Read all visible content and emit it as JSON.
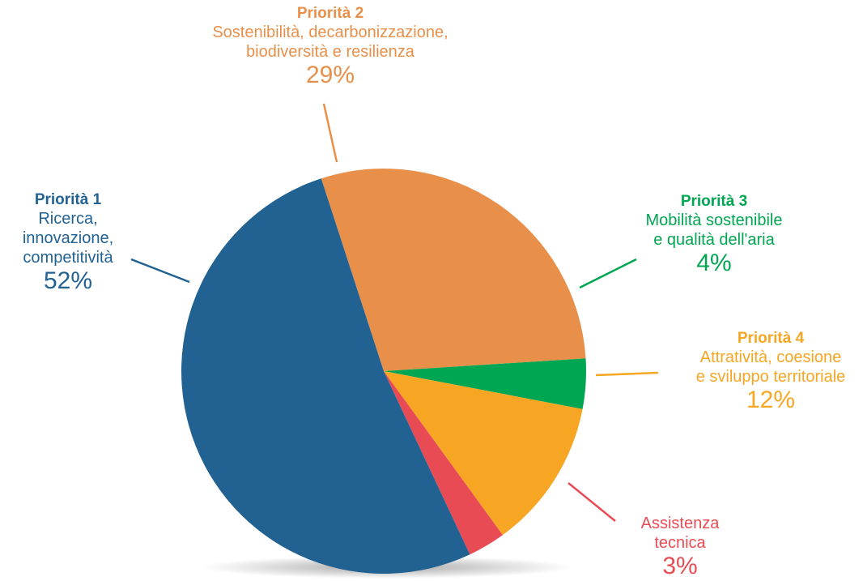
{
  "chart_data": {
    "type": "pie",
    "slices": [
      {
        "title": "Priorità 1",
        "desc": [
          "Ricerca,",
          "innovazione,",
          "competitività"
        ],
        "pct": "52%",
        "value": 52,
        "color": "#226293"
      },
      {
        "title": "Priorità 2",
        "desc": [
          "Sostenibilità, decarbonizzazione,",
          "biodiversità e resilienza"
        ],
        "pct": "29%",
        "value": 29,
        "color": "#E8904A"
      },
      {
        "title": "Priorità 3",
        "desc": [
          "Mobilità sostenibile",
          "e qualità dell'aria"
        ],
        "pct": "4%",
        "value": 4,
        "color": "#00A651"
      },
      {
        "title": "Priorità 4",
        "desc": [
          "Attratività, coesione",
          "e sviluppo territoriale"
        ],
        "pct": "12%",
        "value": 12,
        "color": "#F6A623"
      },
      {
        "title": "",
        "desc": [
          "Assistenza",
          "tecnica"
        ],
        "pct": "3%",
        "value": 3,
        "color": "#E94B54"
      }
    ]
  }
}
